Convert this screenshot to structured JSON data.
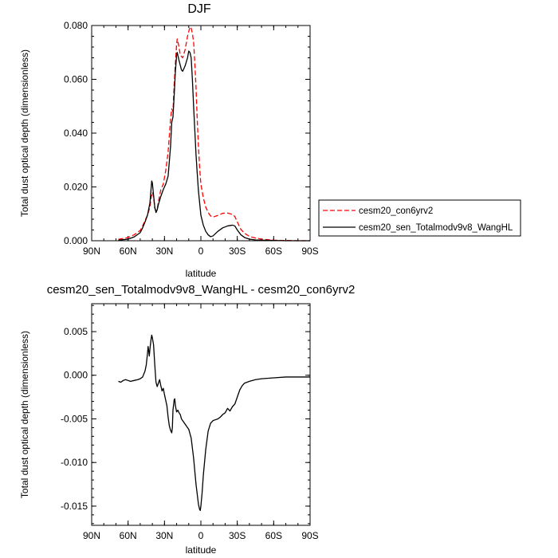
{
  "chart_data": [
    {
      "type": "line",
      "title": "DJF",
      "xlabel": "latitude",
      "ylabel": "Total dust optical depth (dimensionless)",
      "xlim": [
        90,
        -90
      ],
      "ylim": [
        0,
        0.08
      ],
      "x_ticks": [
        90,
        60,
        30,
        0,
        -30,
        -60,
        -90
      ],
      "x_tick_labels": [
        "90N",
        "60N",
        "30N",
        "0",
        "30S",
        "60S",
        "90S"
      ],
      "y_ticks": [
        0,
        0.02,
        0.04,
        0.06,
        0.08
      ],
      "y_tick_labels": [
        "0.000",
        "0.020",
        "0.040",
        "0.060",
        "0.080"
      ],
      "legend_position": "outside-right",
      "series": [
        {
          "name": "cesm20_con6yrv2",
          "color": "#ff0000",
          "dash": "dashed",
          "points": [
            [
              68,
              0.0005
            ],
            [
              60,
              0.0012
            ],
            [
              55,
              0.0022
            ],
            [
              50,
              0.0038
            ],
            [
              48,
              0.0055
            ],
            [
              46,
              0.0075
            ],
            [
              44,
              0.0095
            ],
            [
              42,
              0.0125
            ],
            [
              41,
              0.016
            ],
            [
              40,
              0.018
            ],
            [
              39,
              0.0165
            ],
            [
              38,
              0.012
            ],
            [
              37,
              0.0112
            ],
            [
              36,
              0.0118
            ],
            [
              35,
              0.0145
            ],
            [
              33,
              0.019
            ],
            [
              31,
              0.021
            ],
            [
              29,
              0.026
            ],
            [
              27,
              0.033
            ],
            [
              25,
              0.045
            ],
            [
              24,
              0.049
            ],
            [
              23,
              0.048
            ],
            [
              22,
              0.058
            ],
            [
              21,
              0.066
            ],
            [
              20,
              0.073
            ],
            [
              19.5,
              0.075
            ],
            [
              18,
              0.072
            ],
            [
              17,
              0.069
            ],
            [
              15,
              0.068
            ],
            [
              13,
              0.071
            ],
            [
              11,
              0.076
            ],
            [
              9,
              0.0795
            ],
            [
              8,
              0.079
            ],
            [
              7,
              0.077
            ],
            [
              6,
              0.074
            ],
            [
              5,
              0.066
            ],
            [
              4,
              0.057
            ],
            [
              3,
              0.045
            ],
            [
              2,
              0.035
            ],
            [
              1,
              0.027
            ],
            [
              0,
              0.021
            ],
            [
              -2,
              0.016
            ],
            [
              -4,
              0.0125
            ],
            [
              -6,
              0.0105
            ],
            [
              -8,
              0.0092
            ],
            [
              -10,
              0.0088
            ],
            [
              -14,
              0.0094
            ],
            [
              -18,
              0.0102
            ],
            [
              -22,
              0.0103
            ],
            [
              -26,
              0.0098
            ],
            [
              -28,
              0.009
            ],
            [
              -30,
              0.007
            ],
            [
              -33,
              0.0042
            ],
            [
              -36,
              0.0028
            ],
            [
              -40,
              0.0016
            ],
            [
              -45,
              0.001
            ],
            [
              -50,
              0.0006
            ],
            [
              -55,
              0.0004
            ],
            [
              -60,
              0.0002
            ],
            [
              -70,
              0.0001
            ],
            [
              -80,
              0.0
            ],
            [
              -90,
              0.0
            ]
          ]
        },
        {
          "name": "cesm20_sen_Totalmodv9v8_WangHL",
          "color": "#000000",
          "dash": "solid",
          "points": [
            [
              68,
              0.0002
            ],
            [
              60,
              0.0006
            ],
            [
              55,
              0.0014
            ],
            [
              50,
              0.003
            ],
            [
              48,
              0.0048
            ],
            [
              46,
              0.007
            ],
            [
              44,
              0.0095
            ],
            [
              42,
              0.014
            ],
            [
              41,
              0.0195
            ],
            [
              40.5,
              0.0222
            ],
            [
              40,
              0.0215
            ],
            [
              39,
              0.017
            ],
            [
              38,
              0.0125
            ],
            [
              37,
              0.0105
            ],
            [
              36,
              0.0115
            ],
            [
              35,
              0.0135
            ],
            [
              33,
              0.0165
            ],
            [
              31,
              0.019
            ],
            [
              29,
              0.021
            ],
            [
              27,
              0.024
            ],
            [
              25,
              0.035
            ],
            [
              24,
              0.044
            ],
            [
              23,
              0.046
            ],
            [
              22,
              0.054
            ],
            [
              21,
              0.063
            ],
            [
              20,
              0.069
            ],
            [
              19.5,
              0.07
            ],
            [
              18,
              0.067
            ],
            [
              16,
              0.0635
            ],
            [
              15,
              0.063
            ],
            [
              13,
              0.065
            ],
            [
              11,
              0.068
            ],
            [
              10,
              0.0705
            ],
            [
              9,
              0.07
            ],
            [
              8,
              0.068
            ],
            [
              7,
              0.06
            ],
            [
              6,
              0.05
            ],
            [
              5,
              0.041
            ],
            [
              4,
              0.032
            ],
            [
              3,
              0.025
            ],
            [
              2,
              0.0185
            ],
            [
              1,
              0.014
            ],
            [
              0,
              0.0095
            ],
            [
              -2,
              0.0058
            ],
            [
              -4,
              0.0035
            ],
            [
              -6,
              0.0022
            ],
            [
              -8,
              0.0015
            ],
            [
              -10,
              0.0018
            ],
            [
              -14,
              0.0035
            ],
            [
              -18,
              0.0048
            ],
            [
              -22,
              0.0055
            ],
            [
              -26,
              0.0058
            ],
            [
              -28,
              0.0055
            ],
            [
              -30,
              0.004
            ],
            [
              -33,
              0.0022
            ],
            [
              -36,
              0.0012
            ],
            [
              -40,
              0.0006
            ],
            [
              -45,
              0.0003
            ],
            [
              -50,
              0.0002
            ],
            [
              -60,
              0.0001
            ],
            [
              -70,
              0.0
            ],
            [
              -90,
              0.0
            ]
          ]
        }
      ]
    },
    {
      "type": "line",
      "title": "cesm20_sen_Totalmodv9v8_WangHL - cesm20_con6yrv2",
      "xlabel": "latitude",
      "ylabel": "Total dust optical depth (dimensionless)",
      "xlim": [
        90,
        -90
      ],
      "ylim": [
        -0.0172,
        0.0082
      ],
      "x_ticks": [
        90,
        60,
        30,
        0,
        -30,
        -60,
        -90
      ],
      "x_tick_labels": [
        "90N",
        "60N",
        "30N",
        "0",
        "30S",
        "60S",
        "90S"
      ],
      "y_ticks": [
        0.005,
        0.0,
        -0.005,
        -0.01,
        -0.015
      ],
      "y_tick_labels": [
        "0.005",
        "0.000",
        "-0.005",
        "-0.010",
        "-0.015"
      ],
      "series": [
        {
          "color": "#000000",
          "dash": "solid",
          "points": [
            [
              68,
              -0.0007
            ],
            [
              66,
              -0.0008
            ],
            [
              64,
              -0.0006
            ],
            [
              62,
              -0.0005
            ],
            [
              60,
              -0.0006
            ],
            [
              58,
              -0.0007
            ],
            [
              55,
              -0.0006
            ],
            [
              52,
              -0.0005
            ],
            [
              50,
              -0.0004
            ],
            [
              48,
              -0.0002
            ],
            [
              46,
              0.0005
            ],
            [
              45,
              0.0012
            ],
            [
              44,
              0.0025
            ],
            [
              43.5,
              0.0033
            ],
            [
              43,
              0.0028
            ],
            [
              42.5,
              0.0022
            ],
            [
              42,
              0.003
            ],
            [
              41,
              0.0042
            ],
            [
              40.5,
              0.0046
            ],
            [
              40,
              0.0043
            ],
            [
              39,
              0.0035
            ],
            [
              38,
              0.0012
            ],
            [
              37,
              -0.0008
            ],
            [
              36,
              -0.0013
            ],
            [
              35,
              -0.0009
            ],
            [
              34,
              -0.0005
            ],
            [
              33,
              -0.0012
            ],
            [
              32,
              -0.0018
            ],
            [
              31,
              -0.0015
            ],
            [
              30,
              -0.0022
            ],
            [
              28,
              -0.0035
            ],
            [
              27,
              -0.0048
            ],
            [
              26,
              -0.0058
            ],
            [
              25,
              -0.0063
            ],
            [
              24,
              -0.0066
            ],
            [
              23.5,
              -0.006
            ],
            [
              23,
              -0.004
            ],
            [
              22,
              -0.0028
            ],
            [
              21.5,
              -0.0027
            ],
            [
              21,
              -0.0035
            ],
            [
              20,
              -0.0042
            ],
            [
              19,
              -0.004
            ],
            [
              18,
              -0.0043
            ],
            [
              17,
              -0.0045
            ],
            [
              16,
              -0.005
            ],
            [
              14,
              -0.0054
            ],
            [
              12,
              -0.0058
            ],
            [
              10,
              -0.0062
            ],
            [
              8,
              -0.0072
            ],
            [
              6,
              -0.0095
            ],
            [
              4,
              -0.0125
            ],
            [
              2,
              -0.0148
            ],
            [
              1,
              -0.0154
            ],
            [
              0.5,
              -0.0155
            ],
            [
              0,
              -0.015
            ],
            [
              -1,
              -0.0135
            ],
            [
              -2,
              -0.0115
            ],
            [
              -4,
              -0.0085
            ],
            [
              -6,
              -0.0064
            ],
            [
              -8,
              -0.0055
            ],
            [
              -10,
              -0.0052
            ],
            [
              -12,
              -0.0051
            ],
            [
              -14,
              -0.005
            ],
            [
              -16,
              -0.0048
            ],
            [
              -18,
              -0.0045
            ],
            [
              -20,
              -0.0043
            ],
            [
              -22,
              -0.0038
            ],
            [
              -24,
              -0.0041
            ],
            [
              -26,
              -0.0036
            ],
            [
              -28,
              -0.0033
            ],
            [
              -30,
              -0.0025
            ],
            [
              -32,
              -0.0017
            ],
            [
              -34,
              -0.0012
            ],
            [
              -36,
              -0.0009
            ],
            [
              -40,
              -0.0007
            ],
            [
              -45,
              -0.0005
            ],
            [
              -50,
              -0.0004
            ],
            [
              -60,
              -0.0003
            ],
            [
              -70,
              -0.0002
            ],
            [
              -80,
              -0.0002
            ],
            [
              -90,
              -0.0002
            ]
          ]
        }
      ]
    }
  ]
}
